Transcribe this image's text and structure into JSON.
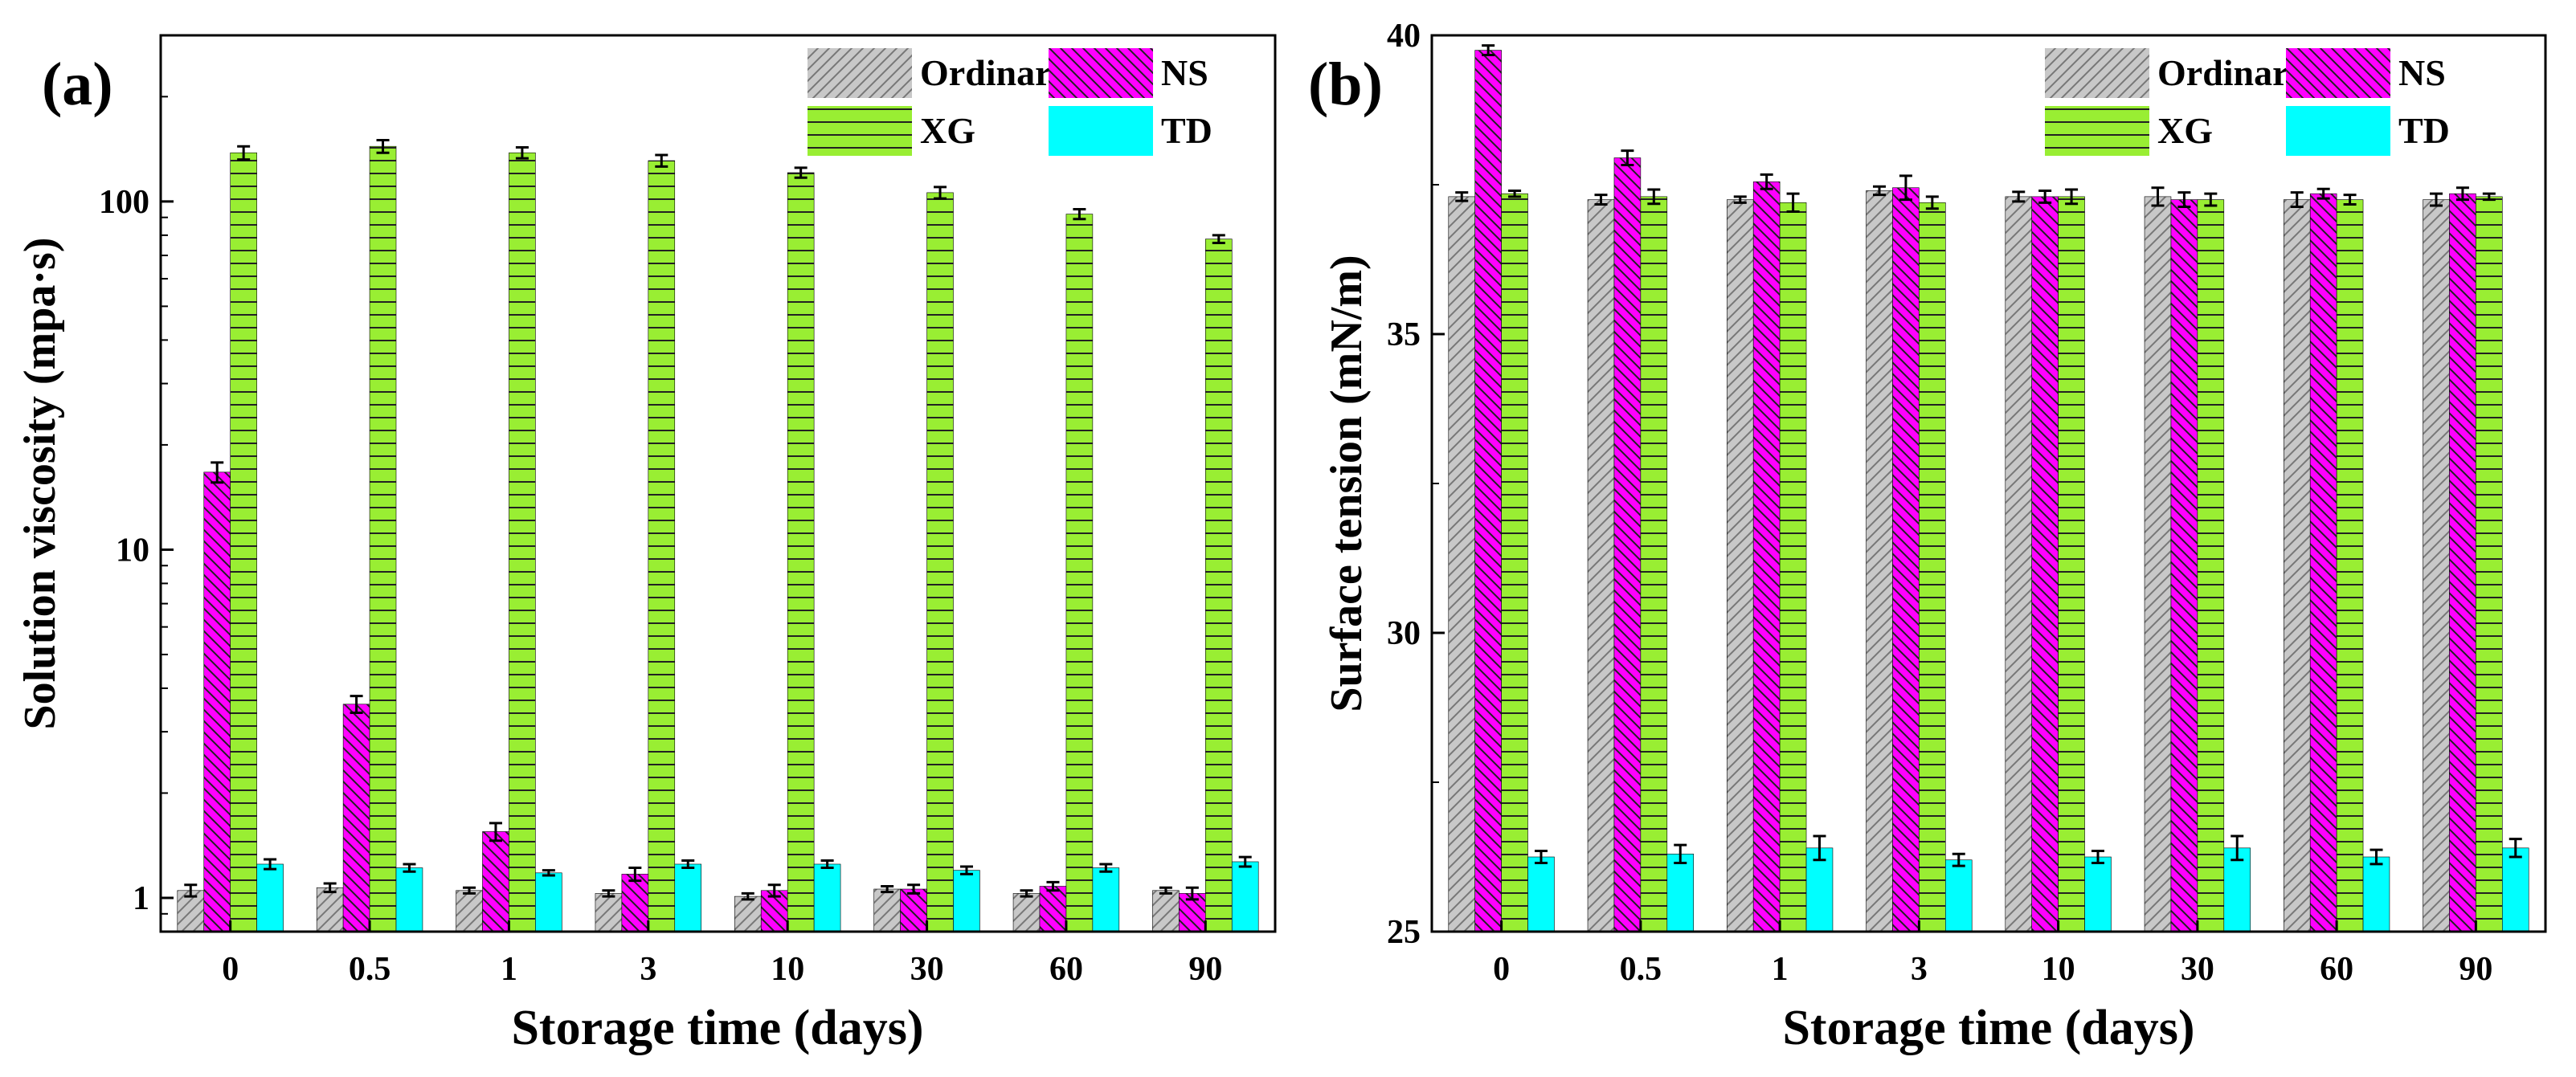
{
  "chart_data": [
    {
      "panel_label": "(a)",
      "type": "bar",
      "yscale": "log",
      "ylim": [
        0.8,
        300
      ],
      "yticks": [
        1,
        10,
        100
      ],
      "ytick_labels": [
        "1",
        "10",
        "100"
      ],
      "title": "",
      "xlabel": "Storage time (days)",
      "ylabel": "Solution viscosity (mpa·s)",
      "legend_position": "top-right",
      "categories": [
        "0",
        "0.5",
        "1",
        "3",
        "10",
        "30",
        "60",
        "90"
      ],
      "series": [
        {
          "name": "Ordinary",
          "color": "#c8c8c8",
          "pattern": "diag-up",
          "values": [
            1.05,
            1.07,
            1.05,
            1.03,
            1.01,
            1.06,
            1.03,
            1.05
          ],
          "errors": [
            0.04,
            0.03,
            0.02,
            0.02,
            0.02,
            0.02,
            0.02,
            0.02
          ]
        },
        {
          "name": "NS",
          "color": "#ff00ff",
          "pattern": "diag-down",
          "values": [
            16.7,
            3.6,
            1.55,
            1.17,
            1.05,
            1.06,
            1.08,
            1.03
          ],
          "errors": [
            1.1,
            0.2,
            0.09,
            0.05,
            0.04,
            0.03,
            0.03,
            0.04
          ]
        },
        {
          "name": "XG",
          "color": "#99ee33",
          "pattern": "horizontal",
          "values": [
            138,
            144,
            138,
            131,
            121,
            106,
            92,
            78
          ],
          "errors": [
            6,
            6,
            5,
            5,
            4,
            4,
            3,
            2
          ]
        },
        {
          "name": "TD",
          "color": "#00ffff",
          "pattern": "solid",
          "values": [
            1.25,
            1.22,
            1.18,
            1.25,
            1.25,
            1.2,
            1.22,
            1.27
          ],
          "errors": [
            0.04,
            0.03,
            0.02,
            0.03,
            0.03,
            0.03,
            0.03,
            0.04
          ]
        }
      ]
    },
    {
      "panel_label": "(b)",
      "type": "bar",
      "yscale": "linear",
      "ylim": [
        25,
        40
      ],
      "yticks": [
        25,
        30,
        35,
        40
      ],
      "ytick_labels": [
        "25",
        "30",
        "35",
        "40"
      ],
      "title": "",
      "xlabel": "Storage time (days)",
      "ylabel": "Surface tension (mN/m)",
      "legend_position": "top-right",
      "categories": [
        "0",
        "0.5",
        "1",
        "3",
        "10",
        "30",
        "60",
        "90"
      ],
      "series": [
        {
          "name": "Ordinary",
          "color": "#c8c8c8",
          "pattern": "diag-up",
          "values": [
            37.3,
            37.25,
            37.25,
            37.4,
            37.3,
            37.3,
            37.25,
            37.25
          ],
          "errors": [
            0.07,
            0.08,
            0.05,
            0.07,
            0.08,
            0.15,
            0.12,
            0.1
          ]
        },
        {
          "name": "NS",
          "color": "#ff00ff",
          "pattern": "diag-down",
          "values": [
            39.75,
            37.95,
            37.55,
            37.45,
            37.3,
            37.25,
            37.35,
            37.35
          ],
          "errors": [
            0.08,
            0.12,
            0.12,
            0.2,
            0.1,
            0.12,
            0.08,
            0.1
          ]
        },
        {
          "name": "XG",
          "color": "#99ee33",
          "pattern": "horizontal",
          "values": [
            37.35,
            37.3,
            37.2,
            37.2,
            37.3,
            37.25,
            37.25,
            37.3
          ],
          "errors": [
            0.05,
            0.12,
            0.15,
            0.1,
            0.12,
            0.1,
            0.08,
            0.05
          ]
        },
        {
          "name": "TD",
          "color": "#00ffff",
          "pattern": "solid",
          "values": [
            26.25,
            26.3,
            26.4,
            26.2,
            26.25,
            26.4,
            26.25,
            26.4
          ],
          "errors": [
            0.1,
            0.15,
            0.2,
            0.1,
            0.1,
            0.2,
            0.12,
            0.15
          ]
        }
      ]
    }
  ]
}
